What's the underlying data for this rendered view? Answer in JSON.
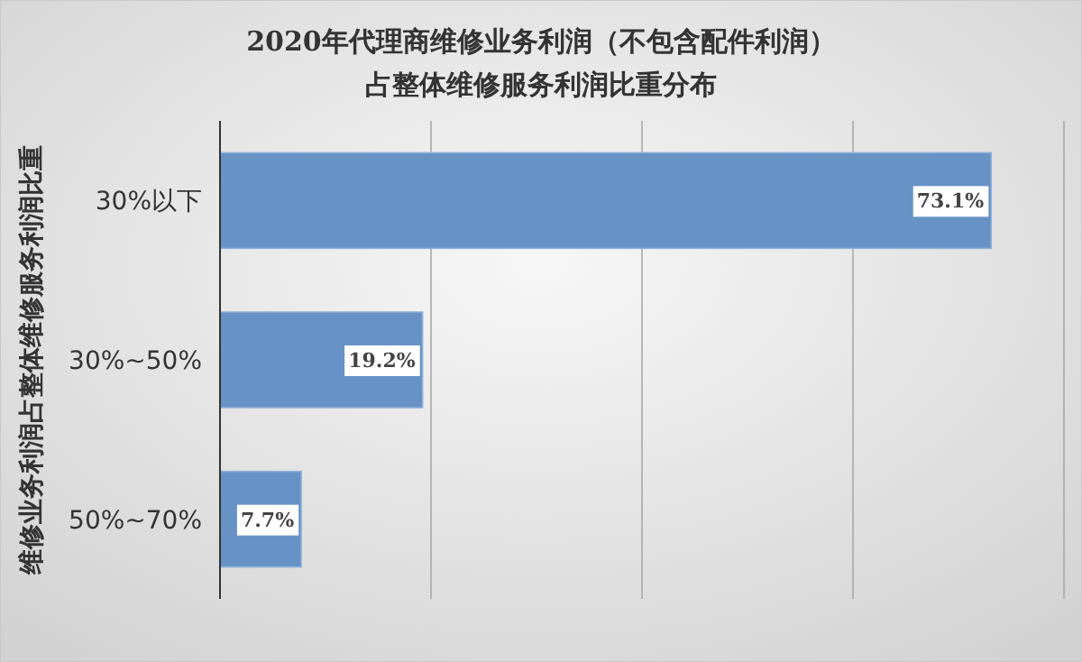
{
  "chart_data": {
    "type": "bar",
    "orientation": "horizontal",
    "title": "2020年代理商维修业务利润（不包含配件利润）",
    "subtitle": "占整体维修服务利润比重分布",
    "ylabel": "维修业务利润占整体维修服务利润比重",
    "categories": [
      "30%以下",
      "30%~50%",
      "50%~70%"
    ],
    "values": [
      73.1,
      19.2,
      7.7
    ],
    "value_labels": [
      "73.1%",
      "19.2%",
      "7.7%"
    ],
    "color": "#6792c6",
    "xlim": [
      0,
      80
    ],
    "xticks": [
      {
        "value": 0,
        "label": null
      },
      {
        "value": 20,
        "label": null
      },
      {
        "value": 40,
        "label": null
      },
      {
        "value": 60,
        "label": null
      },
      {
        "value": 80,
        "label": null
      }
    ],
    "tick_labels": "y",
    "grid": "x"
  }
}
